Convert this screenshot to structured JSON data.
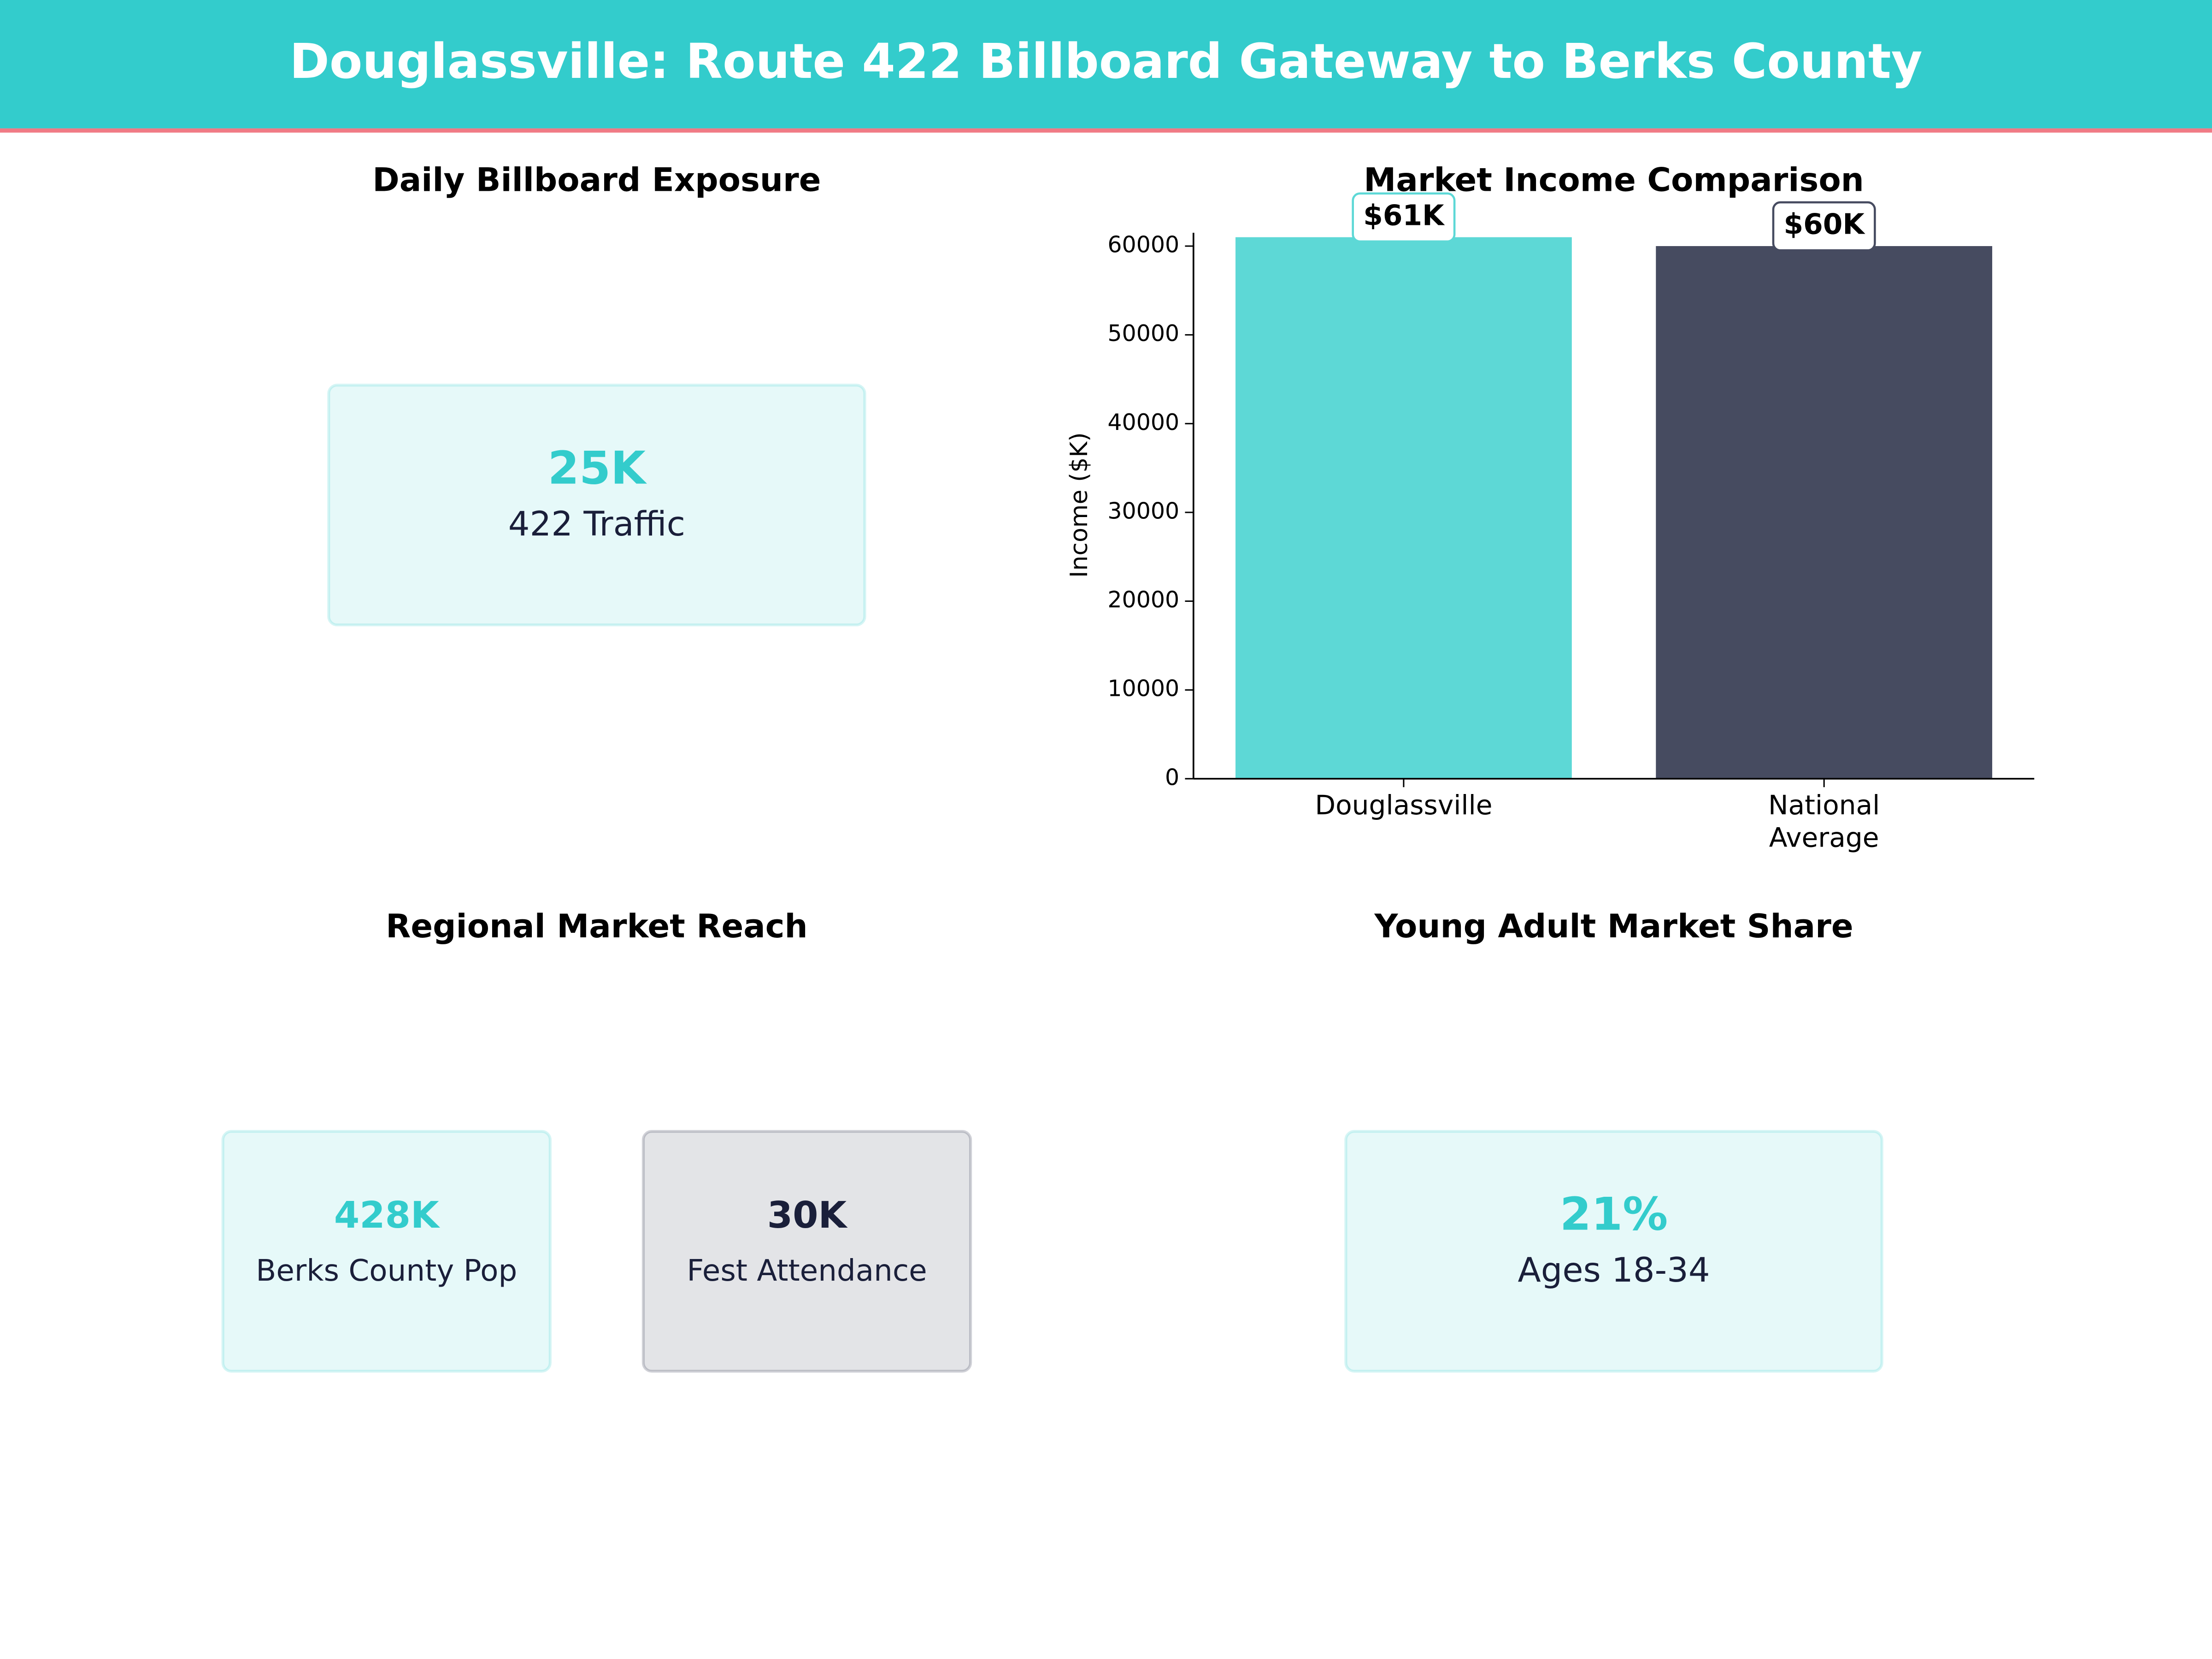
{
  "title": "Douglassville: Route 422 Billboard Gateway to Berks County",
  "kpi_panels": [
    {
      "title": "Daily Billboard Exposure",
      "cards": [
        {
          "value": "25K",
          "label": "422 Traffic",
          "color": "#33cccc"
        }
      ]
    },
    {
      "title": "Regional Market Reach",
      "cards": [
        {
          "value": "428K",
          "label": "Berks County Pop",
          "color": "#33cccc"
        },
        {
          "value": "30K",
          "label": "Fest Attendance",
          "color": "#1a1f3a"
        }
      ]
    },
    {
      "title": "Young Adult Market Share",
      "cards": [
        {
          "value": "21%",
          "label": "Ages 18-34",
          "color": "#33cccc"
        }
      ]
    }
  ],
  "chart_data": {
    "type": "bar",
    "title": "Market Income Comparison",
    "ylabel": "Income ($K)",
    "categories": [
      "Douglassville",
      "National\nAverage"
    ],
    "values": [
      61000,
      60000
    ],
    "value_labels": [
      "$61K",
      "$60K"
    ],
    "colors": [
      "#5dd8d6",
      "#464b60"
    ],
    "ylim": [
      0,
      61500
    ],
    "yticks": [
      0,
      10000,
      20000,
      30000,
      40000,
      50000,
      60000
    ]
  }
}
